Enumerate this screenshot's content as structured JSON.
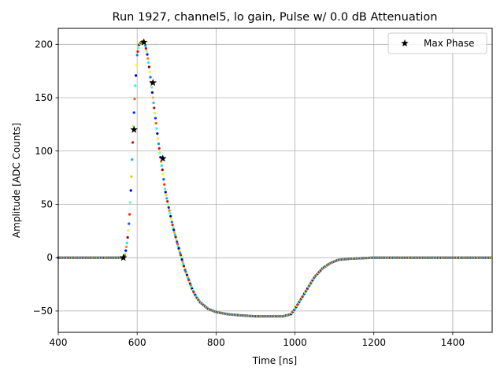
{
  "chart_data": {
    "type": "scatter",
    "title": "Run 1927, channel5, lo gain, Pulse w/ 0.0 dB Attenuation",
    "xlabel": "Time [ns]",
    "ylabel": "Amplitude [ADC Counts]",
    "xlim": [
      400,
      1500
    ],
    "ylim": [
      -70,
      215
    ],
    "xticks": [
      400,
      600,
      800,
      1000,
      1200,
      1400
    ],
    "yticks": [
      -50,
      0,
      50,
      100,
      150,
      200
    ],
    "xtick_labels": [
      "400",
      "600",
      "800",
      "1000",
      "1200",
      "1400"
    ],
    "ytick_labels": [
      "−50",
      "0",
      "50",
      "100",
      "150",
      "200"
    ],
    "grid": true,
    "legend": {
      "position": "top-right",
      "entries": [
        "Max Phase"
      ]
    },
    "colormap": "jet",
    "pulse_shape": {
      "x": [
        400,
        560,
        565,
        570,
        575,
        580,
        585,
        590,
        595,
        600,
        605,
        610,
        615,
        620,
        625,
        630,
        635,
        640,
        645,
        650,
        655,
        660,
        665,
        670,
        680,
        690,
        700,
        710,
        720,
        730,
        740,
        750,
        760,
        780,
        800,
        830,
        860,
        900,
        940,
        970,
        990,
        1000,
        1010,
        1030,
        1050,
        1070,
        1090,
        1110,
        1140,
        1170,
        1200,
        1300,
        1500
      ],
      "y": [
        0,
        0,
        0,
        4,
        15,
        35,
        70,
        120,
        160,
        190,
        200,
        202,
        203,
        200,
        192,
        180,
        165,
        150,
        135,
        120,
        105,
        92,
        80,
        65,
        47,
        30,
        16,
        3,
        -10,
        -20,
        -30,
        -37,
        -42,
        -48,
        -51,
        -53,
        -54,
        -55,
        -55,
        -55,
        -53,
        -48,
        -42,
        -30,
        -18,
        -10,
        -5,
        -2,
        -1,
        -0.5,
        0,
        0,
        0
      ]
    },
    "series": [
      {
        "name": "Max Phase",
        "marker": "star",
        "color": "#000000",
        "x": [
          565,
          592,
          617,
          640,
          665
        ],
        "y": [
          0,
          120,
          202,
          164,
          93
        ]
      }
    ]
  }
}
